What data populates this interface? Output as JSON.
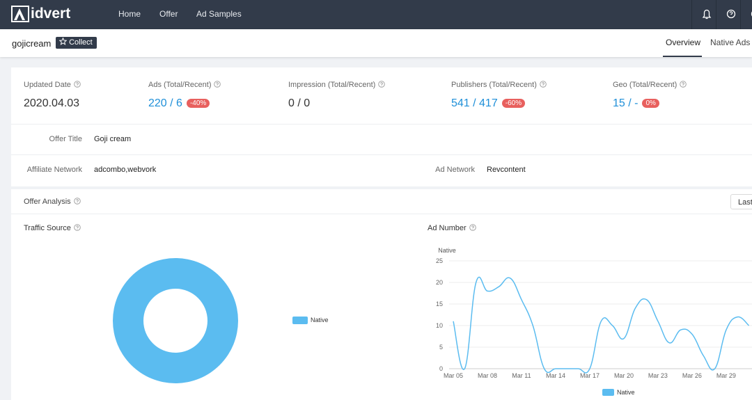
{
  "nav": {
    "logo": "idvert",
    "links": [
      "Home",
      "Offer",
      "Ad Samples"
    ]
  },
  "header": {
    "title": "gojicream",
    "collect": "Collect",
    "tabs": [
      "Overview",
      "Native Ads"
    ]
  },
  "stats": [
    {
      "label": "Updated Date",
      "value": "2020.04.03"
    },
    {
      "label": "Ads (Total/Recent)",
      "value": "220 / 6",
      "badge": "-40%"
    },
    {
      "label": "Impression (Total/Recent)",
      "value": "0 / 0"
    },
    {
      "label": "Publishers (Total/Recent)",
      "value": "541 / 417",
      "badge": "-60%"
    },
    {
      "label": "Geo (Total/Recent)",
      "value": "15 / -",
      "badge": "0%"
    }
  ],
  "info": {
    "offer_title": {
      "label": "Offer Title",
      "value": "Goji cream"
    },
    "affiliate_network": {
      "label": "Affiliate Network",
      "value": "adcombo,webvork"
    },
    "ad_network": {
      "label": "Ad Network",
      "value": "Revcontent"
    }
  },
  "analysis": {
    "title": "Offer Analysis",
    "button": "Last"
  },
  "chart_data": [
    {
      "type": "pie",
      "title": "Traffic Source",
      "donut": true,
      "categories": [
        "Native"
      ],
      "values": [
        100
      ],
      "colors": [
        "#5bbcf0"
      ]
    },
    {
      "type": "line",
      "title": "Ad Number",
      "y_label": "Native",
      "categories": [
        "Mar 05",
        null,
        null,
        "Mar 08",
        null,
        null,
        "Mar 11",
        null,
        null,
        "Mar 14",
        null,
        null,
        "Mar 17",
        null,
        null,
        "Mar 20",
        null,
        null,
        "Mar 23",
        null,
        null,
        "Mar 26",
        null,
        null,
        "Mar 29",
        null,
        null
      ],
      "series": [
        {
          "name": "Native",
          "color": "#5bbcf0",
          "values": [
            11,
            0,
            20,
            18,
            19,
            21,
            16,
            10,
            0,
            0,
            0,
            0,
            0,
            11,
            10,
            7,
            14,
            16,
            11,
            6,
            9,
            8,
            3,
            0,
            9,
            12,
            10
          ]
        }
      ],
      "ylim": [
        0,
        25
      ],
      "yticks": [
        0,
        5,
        10,
        15,
        20,
        25
      ],
      "grid": true
    }
  ]
}
